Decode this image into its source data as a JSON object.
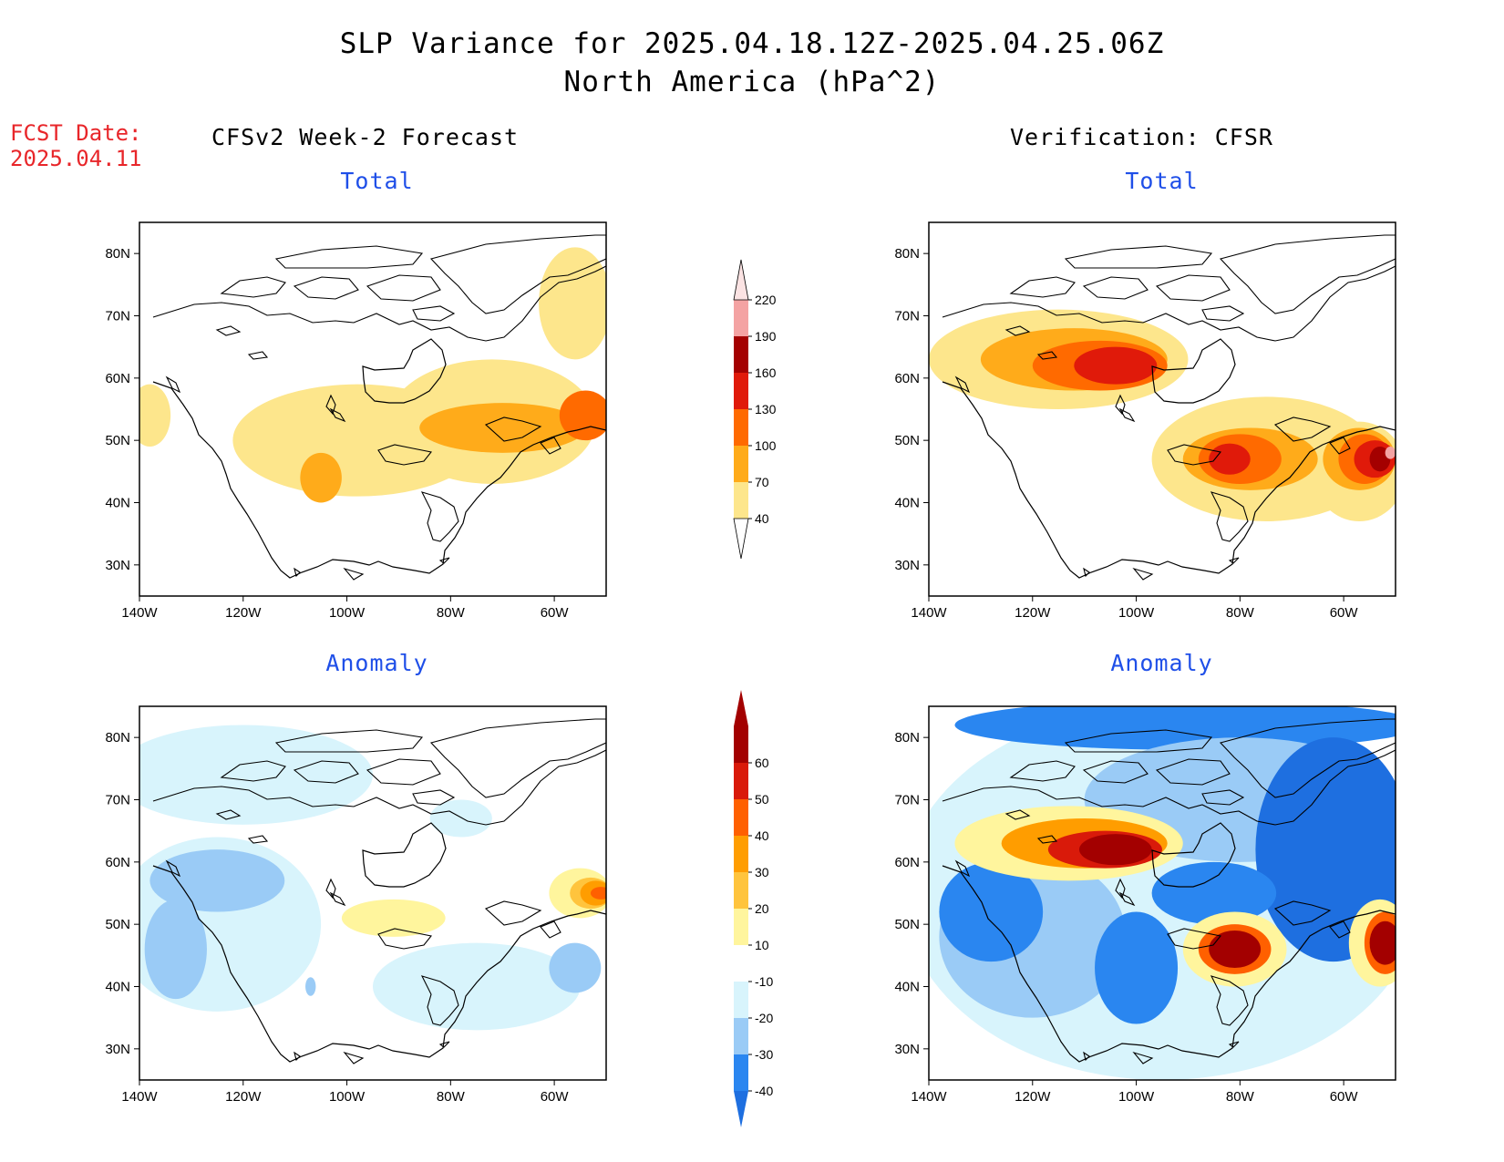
{
  "figure": {
    "title_line1": "SLP Variance for 2025.04.18.12Z-2025.04.25.06Z",
    "title_line2": "North America (hPa^2)",
    "fcst_date_label": "FCST Date:",
    "fcst_date_value": "2025.04.11",
    "left_header": "CFSv2 Week-2 Forecast",
    "right_header": "Verification: CFSR"
  },
  "colors": {
    "land_outline": "#000000",
    "total_40_70": "#fde68c",
    "total_70_100": "#ffab1a",
    "total_100_130": "#ff6a00",
    "total_130_160": "#e01a0a",
    "total_160_190": "#a40000",
    "total_190_220": "#f4a3a3",
    "anom_lt_-40": "#1e6fe0",
    "anom_-40_-30": "#2a86f0",
    "anom_-30_-20": "#9acbf6",
    "anom_-20_-10": "#d8f4fc",
    "anom_10_20": "#fff59d",
    "anom_20_30": "#ffc43d",
    "anom_30_40": "#ff9d00",
    "anom_40_50": "#ff6000",
    "anom_50_60": "#d91a0a",
    "anom_gt_60": "#a30000"
  },
  "chart_data": {
    "type": "heatmap",
    "x_ticks": [
      "140W",
      "120W",
      "100W",
      "80W",
      "60W"
    ],
    "y_ticks": [
      "80N",
      "70N",
      "60N",
      "50N",
      "40N",
      "30N"
    ],
    "lon_range": [
      -140,
      -50
    ],
    "lat_range": [
      25,
      85
    ],
    "total_colorbar": {
      "levels": [
        "40",
        "70",
        "100",
        "130",
        "160",
        "190",
        "220"
      ]
    },
    "anomaly_colorbar": {
      "levels": [
        "-40",
        "-30",
        "-20",
        "-10",
        "10",
        "20",
        "30",
        "40",
        "50",
        "60"
      ]
    },
    "panels": [
      {
        "id": "forecast-total",
        "subtitle": "Total",
        "kind": "total",
        "blobs": [
          {
            "lon": -98,
            "lat": 50,
            "rx": 24,
            "ry": 9,
            "level": 0
          },
          {
            "lon": -72,
            "lat": 53,
            "rx": 20,
            "ry": 10,
            "level": 0
          },
          {
            "lon": -56,
            "lat": 72,
            "rx": 7,
            "ry": 9,
            "level": 0
          },
          {
            "lon": -138,
            "lat": 54,
            "rx": 4,
            "ry": 5,
            "level": 0
          },
          {
            "lon": -105,
            "lat": 44,
            "rx": 4,
            "ry": 4,
            "level": 1
          },
          {
            "lon": -70,
            "lat": 52,
            "rx": 16,
            "ry": 4,
            "level": 1
          },
          {
            "lon": -54,
            "lat": 54,
            "rx": 5,
            "ry": 4,
            "level": 2
          }
        ]
      },
      {
        "id": "verification-total",
        "subtitle": "Total",
        "kind": "total",
        "blobs": [
          {
            "lon": -115,
            "lat": 63,
            "rx": 25,
            "ry": 8,
            "level": 0
          },
          {
            "lon": -75,
            "lat": 47,
            "rx": 22,
            "ry": 10,
            "level": 0
          },
          {
            "lon": -57,
            "lat": 45,
            "rx": 9,
            "ry": 8,
            "level": 0
          },
          {
            "lon": -112,
            "lat": 63,
            "rx": 18,
            "ry": 5,
            "level": 1
          },
          {
            "lon": -78,
            "lat": 47,
            "rx": 13,
            "ry": 5,
            "level": 1
          },
          {
            "lon": -57,
            "lat": 47,
            "rx": 7,
            "ry": 5,
            "level": 1
          },
          {
            "lon": -107,
            "lat": 62,
            "rx": 13,
            "ry": 4,
            "level": 2
          },
          {
            "lon": -80,
            "lat": 47,
            "rx": 8,
            "ry": 4,
            "level": 2
          },
          {
            "lon": -56,
            "lat": 47,
            "rx": 5,
            "ry": 4,
            "level": 2
          },
          {
            "lon": -104,
            "lat": 62,
            "rx": 8,
            "ry": 3,
            "level": 3
          },
          {
            "lon": -82,
            "lat": 47,
            "rx": 4,
            "ry": 2.5,
            "level": 3
          },
          {
            "lon": -54,
            "lat": 47,
            "rx": 4,
            "ry": 3,
            "level": 3
          },
          {
            "lon": -53,
            "lat": 47,
            "rx": 2,
            "ry": 2,
            "level": 4
          },
          {
            "lon": -51,
            "lat": 48,
            "rx": 1,
            "ry": 1,
            "level": 5
          }
        ]
      },
      {
        "id": "forecast-anomaly",
        "subtitle": "Anomaly",
        "kind": "anomaly",
        "blobs": [
          {
            "lon": -120,
            "lat": 74,
            "rx": 25,
            "ry": 8,
            "level": 3
          },
          {
            "lon": -125,
            "lat": 50,
            "rx": 20,
            "ry": 14,
            "level": 3
          },
          {
            "lon": -75,
            "lat": 40,
            "rx": 20,
            "ry": 7,
            "level": 3
          },
          {
            "lon": -78,
            "lat": 67,
            "rx": 6,
            "ry": 3,
            "level": 3
          },
          {
            "lon": -125,
            "lat": 57,
            "rx": 13,
            "ry": 5,
            "level": 2
          },
          {
            "lon": -133,
            "lat": 46,
            "rx": 6,
            "ry": 8,
            "level": 2
          },
          {
            "lon": -56,
            "lat": 43,
            "rx": 5,
            "ry": 4,
            "level": 2
          },
          {
            "lon": -107,
            "lat": 40,
            "rx": 1,
            "ry": 1.5,
            "level": 2
          },
          {
            "lon": -91,
            "lat": 51,
            "rx": 10,
            "ry": 3,
            "level": 4
          },
          {
            "lon": -55,
            "lat": 55,
            "rx": 6,
            "ry": 4,
            "level": 4
          },
          {
            "lon": -53,
            "lat": 55,
            "rx": 4,
            "ry": 2.5,
            "level": 5
          },
          {
            "lon": -52,
            "lat": 55,
            "rx": 3,
            "ry": 2,
            "level": 6
          },
          {
            "lon": -51,
            "lat": 55,
            "rx": 2,
            "ry": 1,
            "level": 7
          }
        ]
      },
      {
        "id": "verification-anomaly",
        "subtitle": "Anomaly",
        "kind": "anomaly",
        "blobs": [
          {
            "lon": -95,
            "lat": 55,
            "rx": 50,
            "ry": 30,
            "level": 3
          },
          {
            "lon": -90,
            "lat": 82,
            "rx": 45,
            "ry": 4,
            "level": 1
          },
          {
            "lon": -80,
            "lat": 70,
            "rx": 30,
            "ry": 10,
            "level": 2
          },
          {
            "lon": -120,
            "lat": 48,
            "rx": 18,
            "ry": 13,
            "level": 2
          },
          {
            "lon": -62,
            "lat": 62,
            "rx": 15,
            "ry": 18,
            "level": 0
          },
          {
            "lon": -128,
            "lat": 52,
            "rx": 10,
            "ry": 8,
            "level": 1
          },
          {
            "lon": -100,
            "lat": 43,
            "rx": 8,
            "ry": 9,
            "level": 1
          },
          {
            "lon": -85,
            "lat": 55,
            "rx": 12,
            "ry": 5,
            "level": 1
          },
          {
            "lon": -113,
            "lat": 63,
            "rx": 22,
            "ry": 6,
            "level": 4
          },
          {
            "lon": -110,
            "lat": 63,
            "rx": 16,
            "ry": 4,
            "level": 6
          },
          {
            "lon": -106,
            "lat": 62,
            "rx": 11,
            "ry": 3,
            "level": 8
          },
          {
            "lon": -104,
            "lat": 62,
            "rx": 7,
            "ry": 2.5,
            "level": 9
          },
          {
            "lon": -81,
            "lat": 46,
            "rx": 10,
            "ry": 6,
            "level": 4
          },
          {
            "lon": -81,
            "lat": 46,
            "rx": 7,
            "ry": 4,
            "level": 7
          },
          {
            "lon": -81,
            "lat": 46,
            "rx": 5,
            "ry": 3,
            "level": 9
          },
          {
            "lon": -53,
            "lat": 47,
            "rx": 6,
            "ry": 7,
            "level": 4
          },
          {
            "lon": -52,
            "lat": 47,
            "rx": 4,
            "ry": 5,
            "level": 7
          },
          {
            "lon": -52,
            "lat": 47,
            "rx": 3,
            "ry": 3.5,
            "level": 9
          }
        ]
      }
    ]
  }
}
